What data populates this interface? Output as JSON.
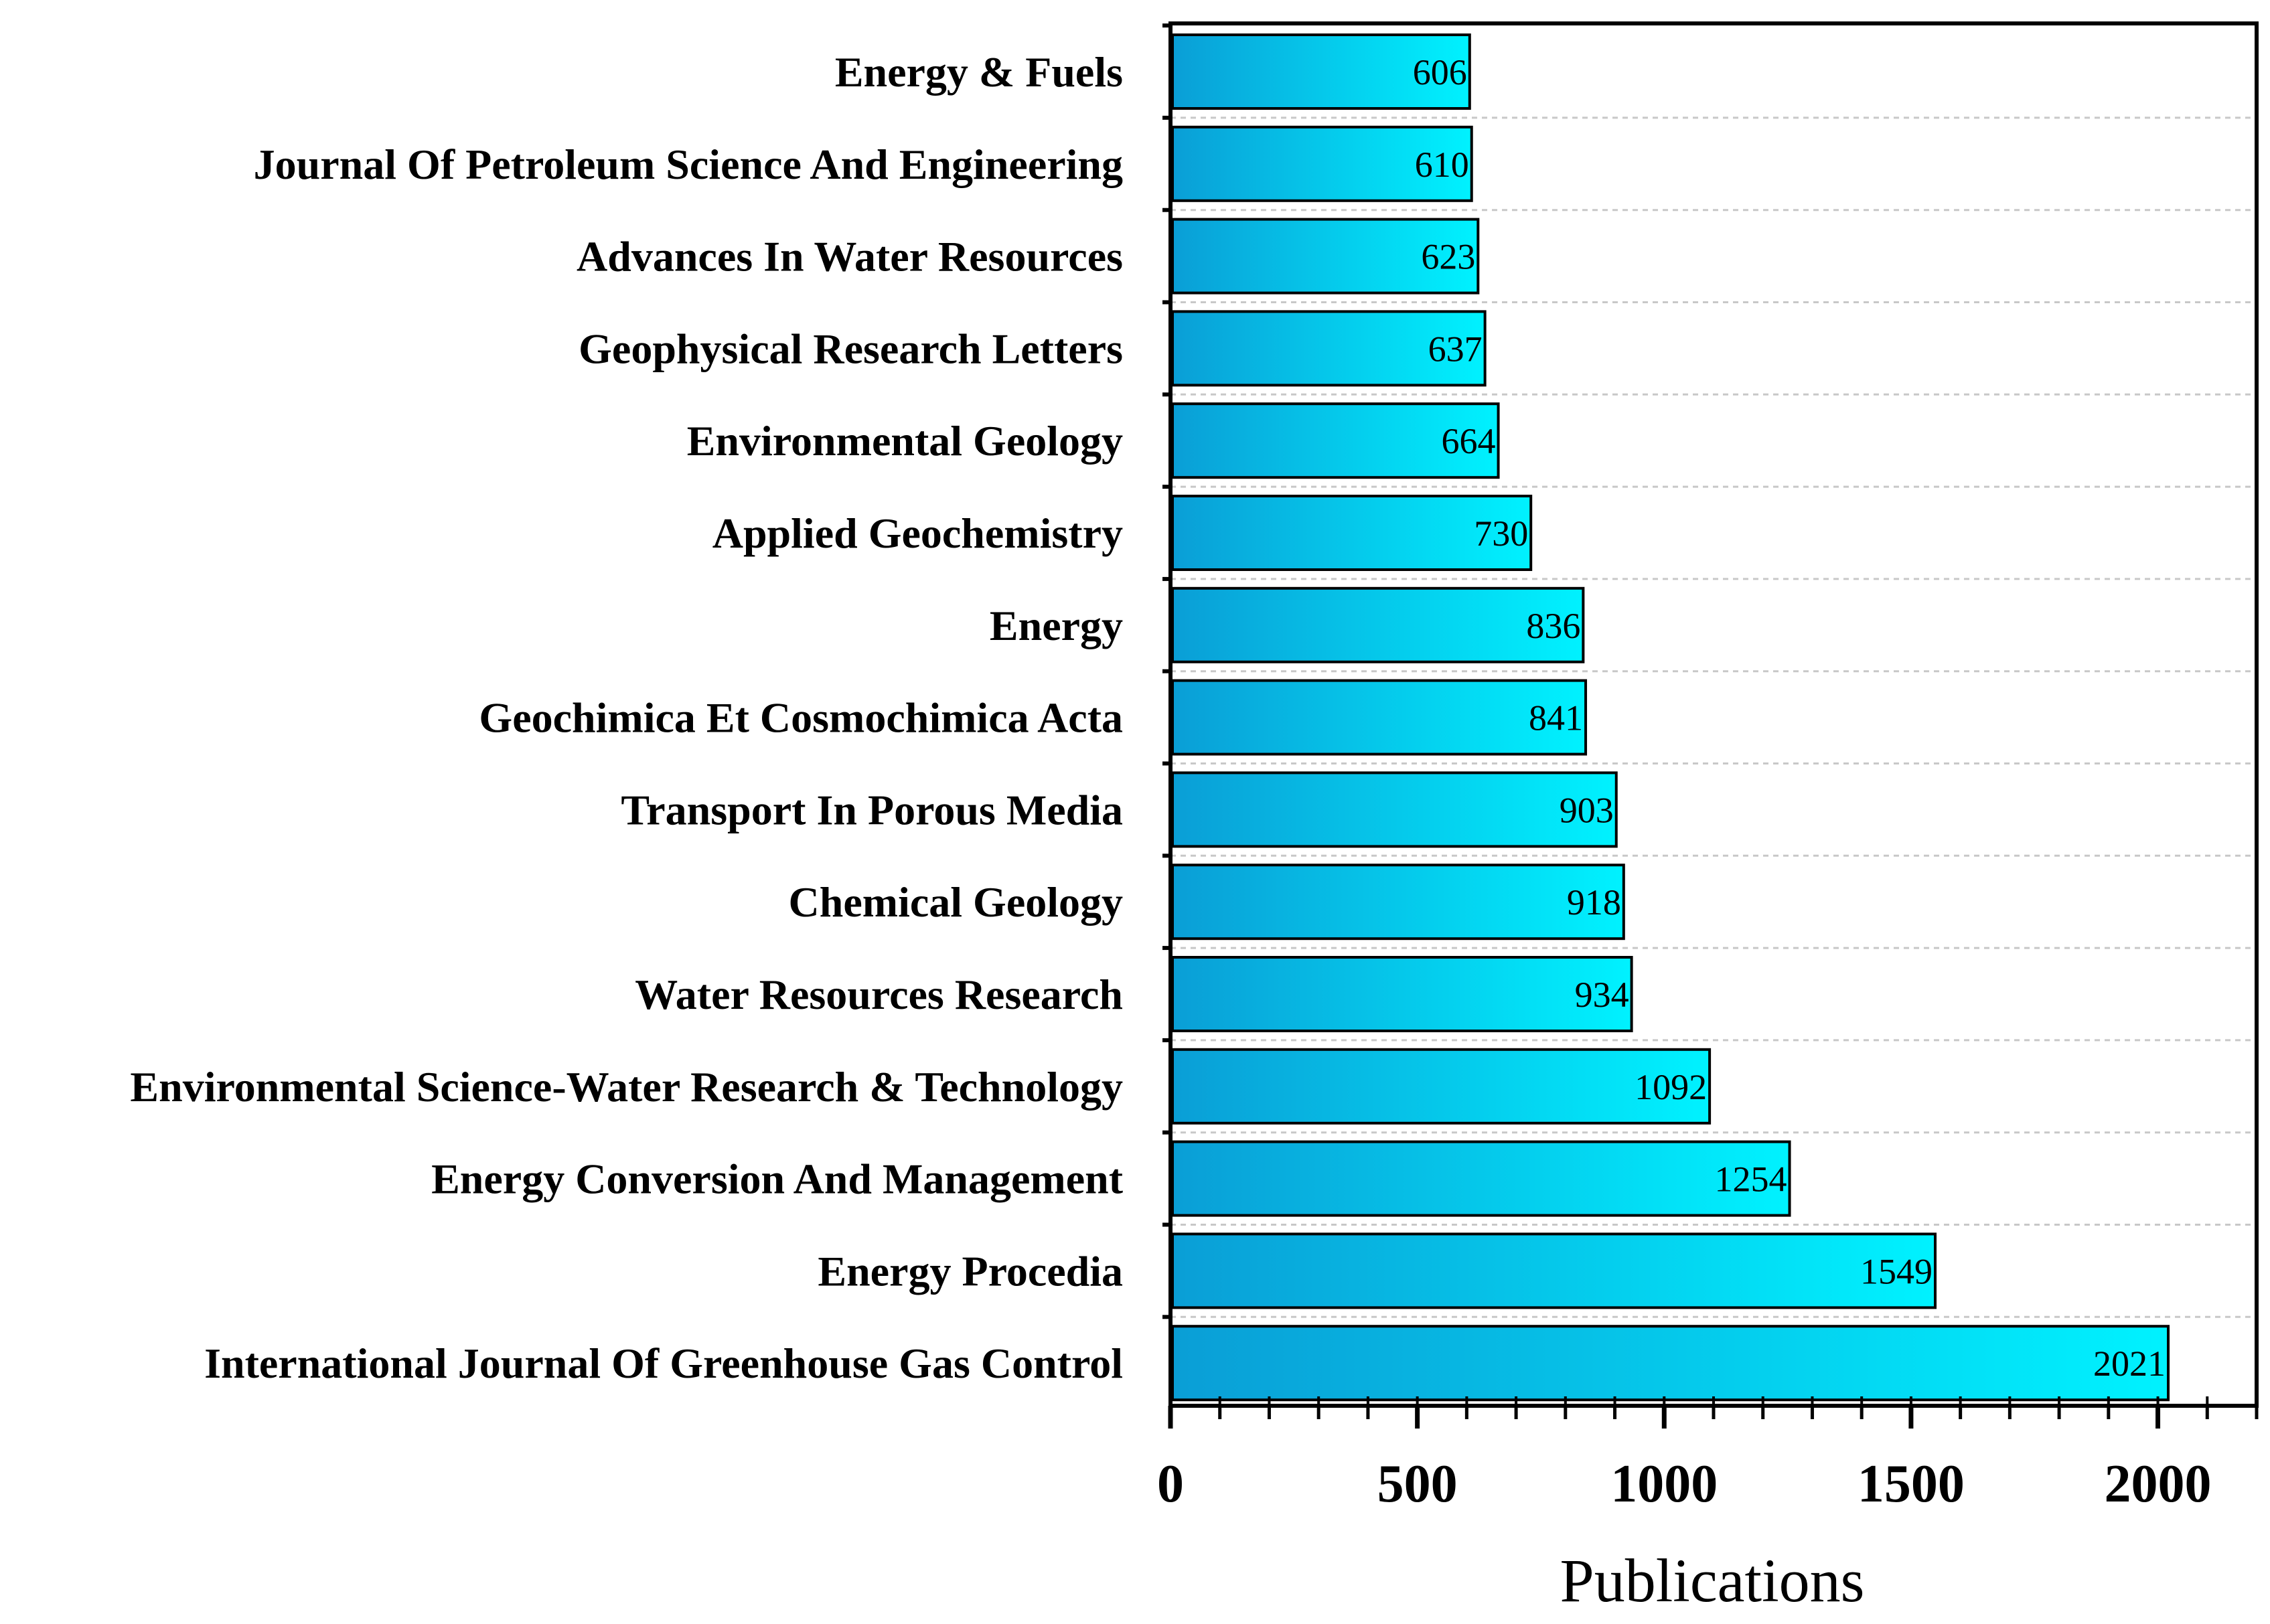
{
  "chart_data": {
    "type": "bar",
    "orientation": "horizontal",
    "title": "",
    "xlabel": "Publications",
    "ylabel": "",
    "xlim": [
      0,
      2200
    ],
    "xticks": [
      0,
      500,
      1000,
      1500,
      2000
    ],
    "grid": "horizontal dashed",
    "categories": [
      "Energy & Fuels",
      "Journal Of Petroleum Science And Engineering",
      "Advances In Water Resources",
      "Geophysical Research Letters",
      "Environmental Geology",
      "Applied Geochemistry",
      "Energy",
      "Geochimica Et Cosmochimica Acta",
      "Transport In Porous Media",
      "Chemical Geology",
      "Water Resources Research",
      "Environmental Science-Water Research & Technology",
      "Energy Conversion And Management",
      "Energy Procedia",
      "International Journal Of Greenhouse Gas Control"
    ],
    "values": [
      606,
      610,
      623,
      637,
      664,
      730,
      836,
      841,
      903,
      918,
      934,
      1092,
      1254,
      1549,
      2021
    ],
    "colors": {
      "bar_start": "#0a9ed6",
      "bar_end": "#00f2ff",
      "bar_stroke": "#000000"
    }
  }
}
